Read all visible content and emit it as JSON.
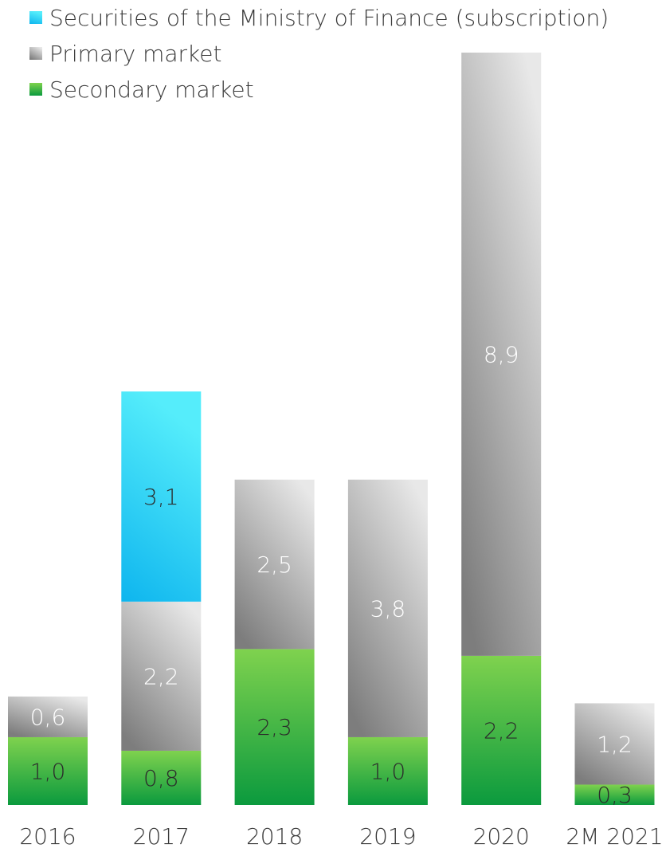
{
  "chart_data": {
    "type": "bar",
    "stacked": true,
    "title": "",
    "xlabel": "",
    "ylabel": "",
    "categories": [
      "2016",
      "2017",
      "2018",
      "2019",
      "2020",
      "2M 2021"
    ],
    "series": [
      {
        "name": "Secondary market",
        "color": "#1fae4a",
        "label_color": "#2b2b2b",
        "values": [
          1.0,
          0.8,
          2.3,
          1.0,
          2.2,
          0.3
        ],
        "labels": [
          "1,0",
          "0,8",
          "2,3",
          "1,0",
          "2,2",
          "0,3"
        ]
      },
      {
        "name": "Primary market",
        "color": "#a8a8a8",
        "label_color": "#ffffff",
        "values": [
          0.6,
          2.2,
          2.5,
          3.8,
          8.9,
          1.2
        ],
        "labels": [
          "0,6",
          "2,2",
          "2,5",
          "3,8",
          "8,9",
          "1,2"
        ]
      },
      {
        "name": "Securities of the Ministry of Finance (subscription)",
        "color": "#27c6ee",
        "label_color": "#2b2b2b",
        "values": [
          0,
          3.1,
          0,
          0,
          0,
          0
        ],
        "labels": [
          "",
          "3,1",
          "",
          "",
          "",
          ""
        ]
      }
    ],
    "legend_order": [
      2,
      1,
      0
    ],
    "legend_position": "top-left",
    "ylim": [
      0,
      11.1
    ],
    "grid": false
  }
}
